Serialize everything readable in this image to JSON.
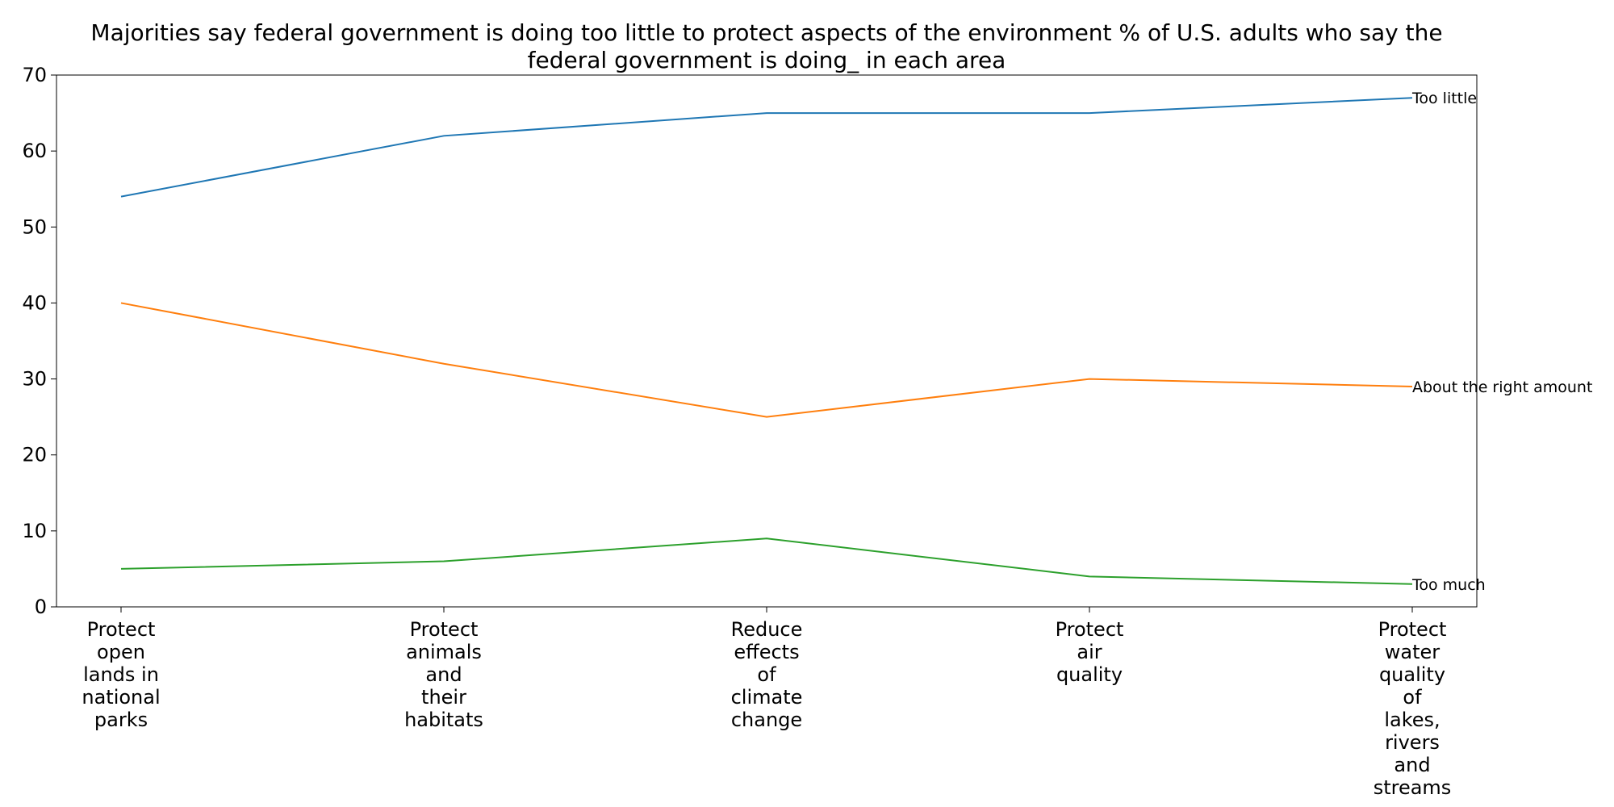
{
  "chart_data": {
    "type": "line",
    "title": "Majorities say federal government is doing too little to protect aspects of the environment % of U.S. adults who say the federal government is doing_ in each area",
    "title_lines": [
      "Majorities say federal government is doing too little to protect aspects of the environment % of U.S. adults who say the",
      "federal government is doing_ in each area"
    ],
    "xlabel": "",
    "ylabel": "",
    "ylim": [
      0,
      70
    ],
    "yticks": [
      0,
      10,
      20,
      30,
      40,
      50,
      60,
      70
    ],
    "grid": false,
    "legend": "inline-right",
    "categories": [
      "Protect open lands in national parks",
      "Protect animals and their habitats",
      "Reduce effects of climate change",
      "Protect air quality",
      "Protect water quality of lakes, rivers and streams"
    ],
    "category_lines": [
      [
        "Protect",
        "open",
        "lands in",
        "national",
        "parks"
      ],
      [
        "Protect",
        "animals",
        "and",
        "their",
        "habitats"
      ],
      [
        "Reduce",
        "effects",
        "of",
        "climate",
        "change"
      ],
      [
        "Protect",
        "air",
        "quality"
      ],
      [
        "Protect",
        "water",
        "quality",
        "of",
        "lakes,",
        "rivers",
        "and",
        "streams"
      ]
    ],
    "series": [
      {
        "name": "Too little",
        "color": "#1f77b4",
        "values": [
          54,
          62,
          65,
          65,
          67
        ]
      },
      {
        "name": "About the right amount",
        "color": "#ff7f0e",
        "values": [
          40,
          32,
          25,
          30,
          29
        ]
      },
      {
        "name": "Too much",
        "color": "#2ca02c",
        "values": [
          5,
          6,
          9,
          4,
          3
        ]
      }
    ]
  }
}
